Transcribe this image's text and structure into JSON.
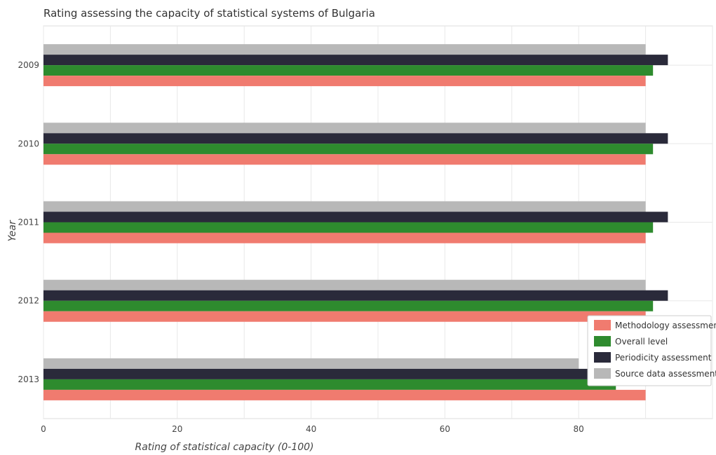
{
  "chart_data": {
    "type": "bar",
    "orientation": "horizontal",
    "title": "Rating assessing the capacity of statistical systems of Bulgaria",
    "xlabel": "Rating of statistical capacity (0-100)",
    "ylabel": "Year",
    "xlim": [
      0,
      100
    ],
    "xticks": [
      0,
      20,
      40,
      60,
      80
    ],
    "categories": [
      "2009",
      "2010",
      "2011",
      "2012",
      "2013"
    ],
    "series": [
      {
        "name": "Methodology assessment",
        "color": "#f07b6f",
        "values": [
          90,
          90,
          90,
          90,
          90
        ]
      },
      {
        "name": "Overall level",
        "color": "#2e8b2e",
        "values": [
          91.11,
          91.11,
          91.11,
          91.11,
          85.56
        ]
      },
      {
        "name": "Periodicity assessment",
        "color": "#2a2a3a",
        "values": [
          93.33,
          93.33,
          93.33,
          93.33,
          86.67
        ]
      },
      {
        "name": "Source data assessment",
        "color": "#b8b8b8",
        "values": [
          90,
          90,
          90,
          90,
          80
        ]
      }
    ],
    "grid": true,
    "legend_position": "bottom-right"
  }
}
